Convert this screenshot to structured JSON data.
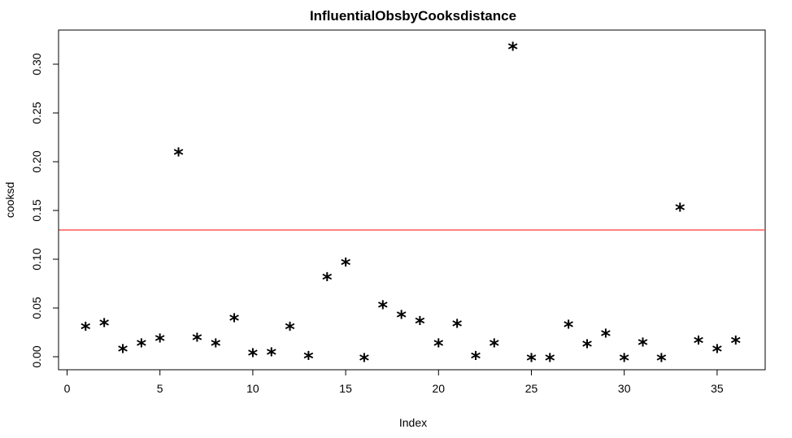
{
  "chart_data": {
    "type": "scatter",
    "title": "InfluentialObsbyCooksdistance",
    "xlabel": "Index",
    "ylabel": "cooksd",
    "xlim": [
      0,
      36
    ],
    "ylim": [
      0.0,
      0.3
    ],
    "x_ticks": [
      0,
      5,
      10,
      15,
      20,
      25,
      30,
      35
    ],
    "y_ticks": [
      0.0,
      0.05,
      0.1,
      0.15,
      0.2,
      0.25,
      0.3
    ],
    "x_tick_labels": [
      "0",
      "5",
      "10",
      "15",
      "20",
      "25",
      "30",
      "35"
    ],
    "y_tick_labels": [
      "0.00",
      "0.05",
      "0.10",
      "0.15",
      "0.20",
      "0.25",
      "0.30"
    ],
    "marker": "*",
    "point_color": "#000000",
    "reference_line": {
      "y": 0.13,
      "color": "#ff5a5a"
    },
    "grid": false,
    "x": [
      1,
      2,
      3,
      4,
      5,
      6,
      7,
      8,
      9,
      10,
      11,
      12,
      13,
      14,
      15,
      16,
      17,
      18,
      19,
      20,
      21,
      22,
      23,
      24,
      25,
      26,
      27,
      28,
      29,
      30,
      31,
      32,
      33,
      34,
      35,
      36
    ],
    "y": [
      0.032,
      0.036,
      0.009,
      0.015,
      0.02,
      0.211,
      0.021,
      0.015,
      0.041,
      0.005,
      0.006,
      0.032,
      0.002,
      0.083,
      0.098,
      0.0,
      0.054,
      0.044,
      0.038,
      0.015,
      0.035,
      0.002,
      0.015,
      0.319,
      0.0,
      0.0,
      0.034,
      0.014,
      0.025,
      0.0,
      0.016,
      0.0,
      0.154,
      0.018,
      0.009,
      0.018
    ]
  }
}
